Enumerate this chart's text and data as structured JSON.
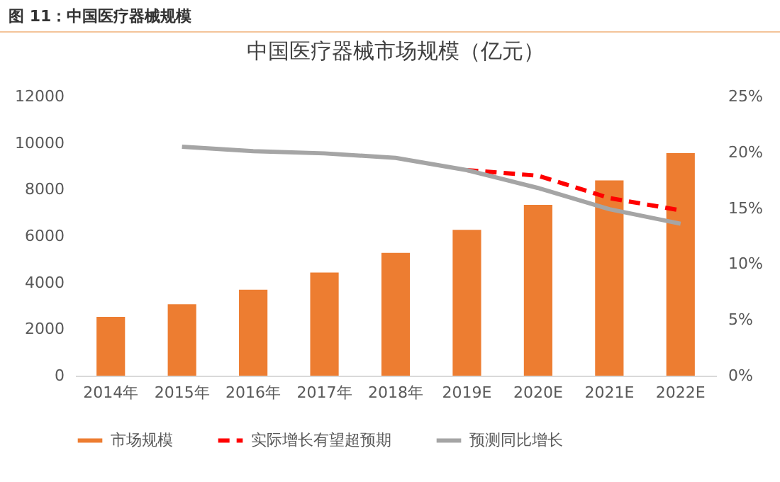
{
  "chart_data": {
    "type": "bar",
    "title": "中国医疗器械市场规模（亿元）",
    "annotations": [
      "图 11：中国医疗器械规模"
    ],
    "categories": [
      "2014年",
      "2015年",
      "2016年",
      "2017年",
      "2018年",
      "2019E",
      "2020E",
      "2021E",
      "2022E"
    ],
    "series": [
      {
        "name": "市场规模",
        "color": "#ed7d31",
        "values": [
          2530,
          3070,
          3690,
          4430,
          5280,
          6270,
          7340,
          8390,
          9560
        ]
      },
      {
        "name": "实际增长有望超预期",
        "type": "line",
        "axis": "y2",
        "line_style": "dashed",
        "color": "#ff0000",
        "values": [
          null,
          null,
          null,
          null,
          null,
          18.4,
          17.9,
          15.9,
          14.8
        ]
      },
      {
        "name": "预测同比增长",
        "type": "line",
        "axis": "y2",
        "line_style": "solid",
        "color": "#a5a5a5",
        "values": [
          null,
          20.5,
          20.1,
          19.9,
          19.5,
          18.4,
          16.8,
          14.9,
          13.6
        ]
      }
    ],
    "ylim": [
      0,
      12000
    ],
    "yticks": [
      0,
      2000,
      4000,
      6000,
      8000,
      10000,
      12000
    ],
    "y2lim": [
      0,
      25
    ],
    "y2ticks": [
      {
        "value": 0,
        "label": "0%"
      },
      {
        "value": 5,
        "label": "5%"
      },
      {
        "value": 10,
        "label": "10%"
      },
      {
        "value": 15,
        "label": "15%"
      },
      {
        "value": 20,
        "label": "20%"
      },
      {
        "value": 25,
        "label": "25%"
      }
    ],
    "grid": false,
    "legend": "bottom",
    "marker": "none"
  }
}
